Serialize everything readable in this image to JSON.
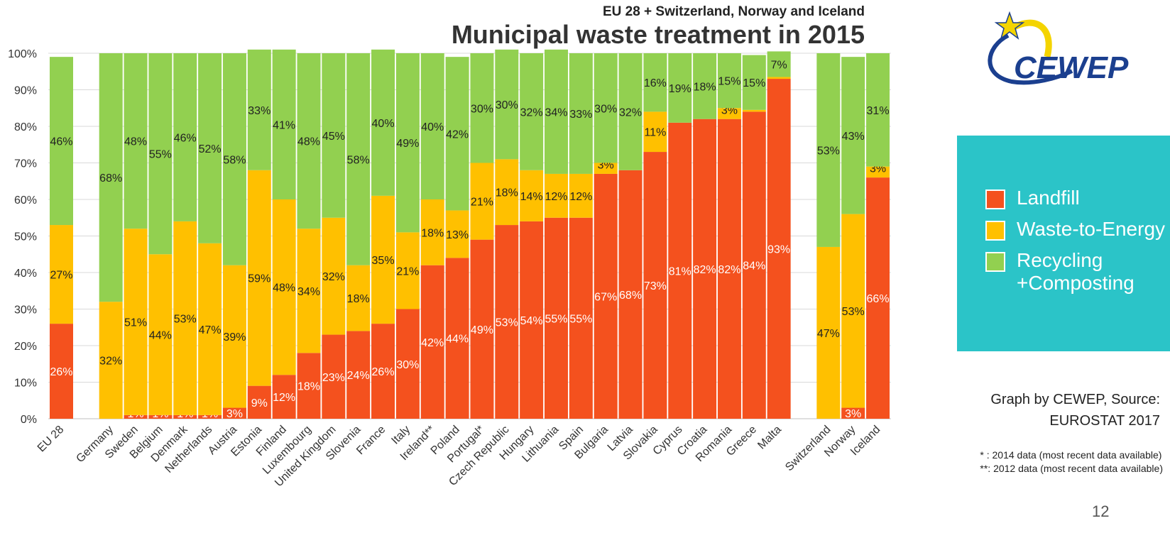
{
  "header": {
    "subtitle": "EU 28 + Switzerland, Norway and Iceland",
    "title": "Municipal waste treatment in 2015"
  },
  "logo": {
    "text": "CEWEP",
    "icon": "star-swoosh-logo-icon"
  },
  "legend": {
    "items": [
      {
        "label": "Landfill",
        "color": "#f4511e"
      },
      {
        "label": "Waste-to-Energy",
        "color": "#ffc000"
      },
      {
        "label": "Recycling",
        "label2": "+Composting",
        "color": "#92d050"
      }
    ]
  },
  "source": {
    "line1": "Graph by CEWEP, Source:",
    "line2": "EUROSTAT 2017"
  },
  "notes": {
    "line1": "* : 2014 data (most recent data available)",
    "line2": "**: 2012 data (most recent data available)"
  },
  "page_number": "12",
  "chart_data": {
    "type": "bar",
    "stacked": true,
    "y_ticks": [
      "0%",
      "10%",
      "20%",
      "30%",
      "40%",
      "50%",
      "60%",
      "70%",
      "80%",
      "90%",
      "100%"
    ],
    "ylim": [
      0,
      100
    ],
    "grid": true,
    "colors": {
      "landfill": "#f4511e",
      "wte": "#ffc000",
      "recycling": "#92d050"
    },
    "series": [
      {
        "name": "Landfill",
        "key": "landfill"
      },
      {
        "name": "Waste-to-Energy",
        "key": "wte"
      },
      {
        "name": "Recycling +Composting",
        "key": "recycling"
      }
    ],
    "bars": [
      {
        "slot": 0,
        "label": "EU 28",
        "landfill": 26,
        "wte": 27,
        "recycling": 46,
        "labels": [
          "26%",
          "27%",
          "46%"
        ]
      },
      {
        "slot": 2,
        "label": "Germany",
        "landfill": 0,
        "wte": 32,
        "recycling": 68,
        "labels": [
          "",
          "32%",
          "68%"
        ]
      },
      {
        "slot": 3,
        "label": "Sweden",
        "landfill": 1,
        "wte": 51,
        "recycling": 48,
        "labels": [
          "1%",
          "51%",
          "48%"
        ]
      },
      {
        "slot": 4,
        "label": "Belgium",
        "landfill": 1,
        "wte": 44,
        "recycling": 55,
        "labels": [
          "1%",
          "44%",
          "55%"
        ]
      },
      {
        "slot": 5,
        "label": "Denmark",
        "landfill": 1,
        "wte": 53,
        "recycling": 46,
        "labels": [
          "1%",
          "53%",
          "46%"
        ]
      },
      {
        "slot": 6,
        "label": "Netherlands",
        "landfill": 1,
        "wte": 47,
        "recycling": 52,
        "labels": [
          "1%",
          "47%",
          "52%"
        ]
      },
      {
        "slot": 7,
        "label": "Austria",
        "landfill": 3,
        "wte": 39,
        "recycling": 58,
        "labels": [
          "3%",
          "39%",
          "58%"
        ]
      },
      {
        "slot": 8,
        "label": "Estonia",
        "landfill": 9,
        "wte": 59,
        "recycling": 33,
        "labels": [
          "9%",
          "59%",
          "33%"
        ]
      },
      {
        "slot": 9,
        "label": "Finland",
        "landfill": 12,
        "wte": 48,
        "recycling": 41,
        "labels": [
          "12%",
          "48%",
          "41%"
        ]
      },
      {
        "slot": 10,
        "label": "Luxembourg",
        "landfill": 18,
        "wte": 34,
        "recycling": 48,
        "labels": [
          "18%",
          "34%",
          "48%"
        ]
      },
      {
        "slot": 11,
        "label": "United Kingdom",
        "landfill": 23,
        "wte": 32,
        "recycling": 45,
        "labels": [
          "23%",
          "32%",
          "45%"
        ]
      },
      {
        "slot": 12,
        "label": "Slovenia",
        "landfill": 24,
        "wte": 18,
        "recycling": 58,
        "labels": [
          "24%",
          "18%",
          "58%"
        ]
      },
      {
        "slot": 13,
        "label": "France",
        "landfill": 26,
        "wte": 35,
        "recycling": 40,
        "labels": [
          "26%",
          "35%",
          "40%"
        ]
      },
      {
        "slot": 14,
        "label": "Italy",
        "landfill": 30,
        "wte": 21,
        "recycling": 49,
        "labels": [
          "30%",
          "21%",
          "49%"
        ]
      },
      {
        "slot": 15,
        "label": "Ireland**",
        "landfill": 42,
        "wte": 18,
        "recycling": 40,
        "labels": [
          "42%",
          "18%",
          "40%"
        ]
      },
      {
        "slot": 16,
        "label": "Poland",
        "landfill": 44,
        "wte": 13,
        "recycling": 42,
        "labels": [
          "44%",
          "13%",
          "42%"
        ]
      },
      {
        "slot": 17,
        "label": "Portugal*",
        "landfill": 49,
        "wte": 21,
        "recycling": 30,
        "labels": [
          "49%",
          "21%",
          "30%"
        ]
      },
      {
        "slot": 18,
        "label": "Czech Republic",
        "landfill": 53,
        "wte": 18,
        "recycling": 30,
        "labels": [
          "53%",
          "18%",
          "30%"
        ]
      },
      {
        "slot": 19,
        "label": "Hungary",
        "landfill": 54,
        "wte": 14,
        "recycling": 32,
        "labels": [
          "54%",
          "14%",
          "32%"
        ]
      },
      {
        "slot": 20,
        "label": "Lithuania",
        "landfill": 55,
        "wte": 12,
        "recycling": 34,
        "labels": [
          "55%",
          "12%",
          "34%"
        ]
      },
      {
        "slot": 21,
        "label": "Spain",
        "landfill": 55,
        "wte": 12,
        "recycling": 33,
        "labels": [
          "55%",
          "12%",
          "33%"
        ]
      },
      {
        "slot": 22,
        "label": "Bulgaria",
        "landfill": 67,
        "wte": 3,
        "recycling": 30,
        "labels": [
          "67%",
          "3%",
          "30%"
        ]
      },
      {
        "slot": 23,
        "label": "Latvia",
        "landfill": 68,
        "wte": 0,
        "recycling": 32,
        "labels": [
          "68%",
          "",
          "32%"
        ]
      },
      {
        "slot": 24,
        "label": "Slovakia",
        "landfill": 73,
        "wte": 11,
        "recycling": 16,
        "labels": [
          "73%",
          "11%",
          "16%"
        ]
      },
      {
        "slot": 25,
        "label": "Cyprus",
        "landfill": 81,
        "wte": 0,
        "recycling": 19,
        "labels": [
          "81%",
          "",
          "19%"
        ]
      },
      {
        "slot": 26,
        "label": "Croatia",
        "landfill": 82,
        "wte": 0,
        "recycling": 18,
        "labels": [
          "82%",
          "",
          "18%"
        ]
      },
      {
        "slot": 27,
        "label": "Romania",
        "landfill": 82,
        "wte": 3,
        "recycling": 15,
        "labels": [
          "82%",
          "3%",
          "15%"
        ]
      },
      {
        "slot": 28,
        "label": "Greece",
        "landfill": 84,
        "wte": 0.5,
        "recycling": 15,
        "labels": [
          "84%",
          "",
          "15%"
        ]
      },
      {
        "slot": 29,
        "label": "Malta",
        "landfill": 93,
        "wte": 0.5,
        "recycling": 7,
        "labels": [
          "93%",
          "",
          "7%"
        ]
      },
      {
        "slot": 31,
        "label": "Switzerland",
        "landfill": 0,
        "wte": 47,
        "recycling": 53,
        "labels": [
          "",
          "47%",
          "53%"
        ]
      },
      {
        "slot": 32,
        "label": "Norway",
        "landfill": 3,
        "wte": 53,
        "recycling": 43,
        "labels": [
          "3%",
          "53%",
          "43%"
        ]
      },
      {
        "slot": 33,
        "label": "Iceland",
        "landfill": 66,
        "wte": 3,
        "recycling": 31,
        "labels": [
          "66%",
          "3%",
          "31%"
        ]
      }
    ]
  }
}
